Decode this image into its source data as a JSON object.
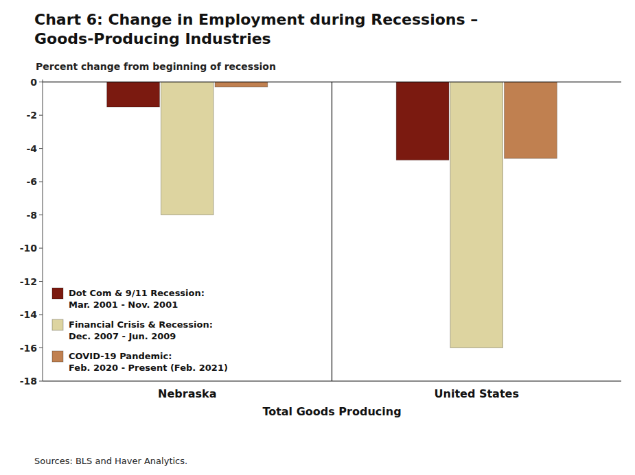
{
  "chart_data": {
    "type": "bar",
    "title": "Chart 6: Change in Employment during Recessions –\nGoods-Producing Industries",
    "ylabel": "Percent change from beginning of recession",
    "xlabel": "Total Goods Producing",
    "source": "Sources: BLS and Haver Analytics.",
    "categories": [
      "Nebraska",
      "United States"
    ],
    "series": [
      {
        "name": "Dot Com & 9/11 Recession:\nMar. 2001 - Nov. 2001",
        "color": "#7b1a10",
        "values": [
          -1.5,
          -4.7
        ]
      },
      {
        "name": "Financial Crisis & Recession:\nDec. 2007 - Jun. 2009",
        "color": "#ddd4a0",
        "values": [
          -8.0,
          -16.0
        ]
      },
      {
        "name": "COVID-19 Pandemic:\nFeb. 2020 - Present (Feb. 2021)",
        "color": "#c08050",
        "values": [
          -0.3,
          -4.6
        ]
      }
    ],
    "ylim": [
      -18,
      0.15
    ],
    "yticks": [
      0,
      -2,
      -4,
      -6,
      -8,
      -10,
      -12,
      -14,
      -16,
      -18
    ],
    "grid": false,
    "legend": "lower left"
  }
}
